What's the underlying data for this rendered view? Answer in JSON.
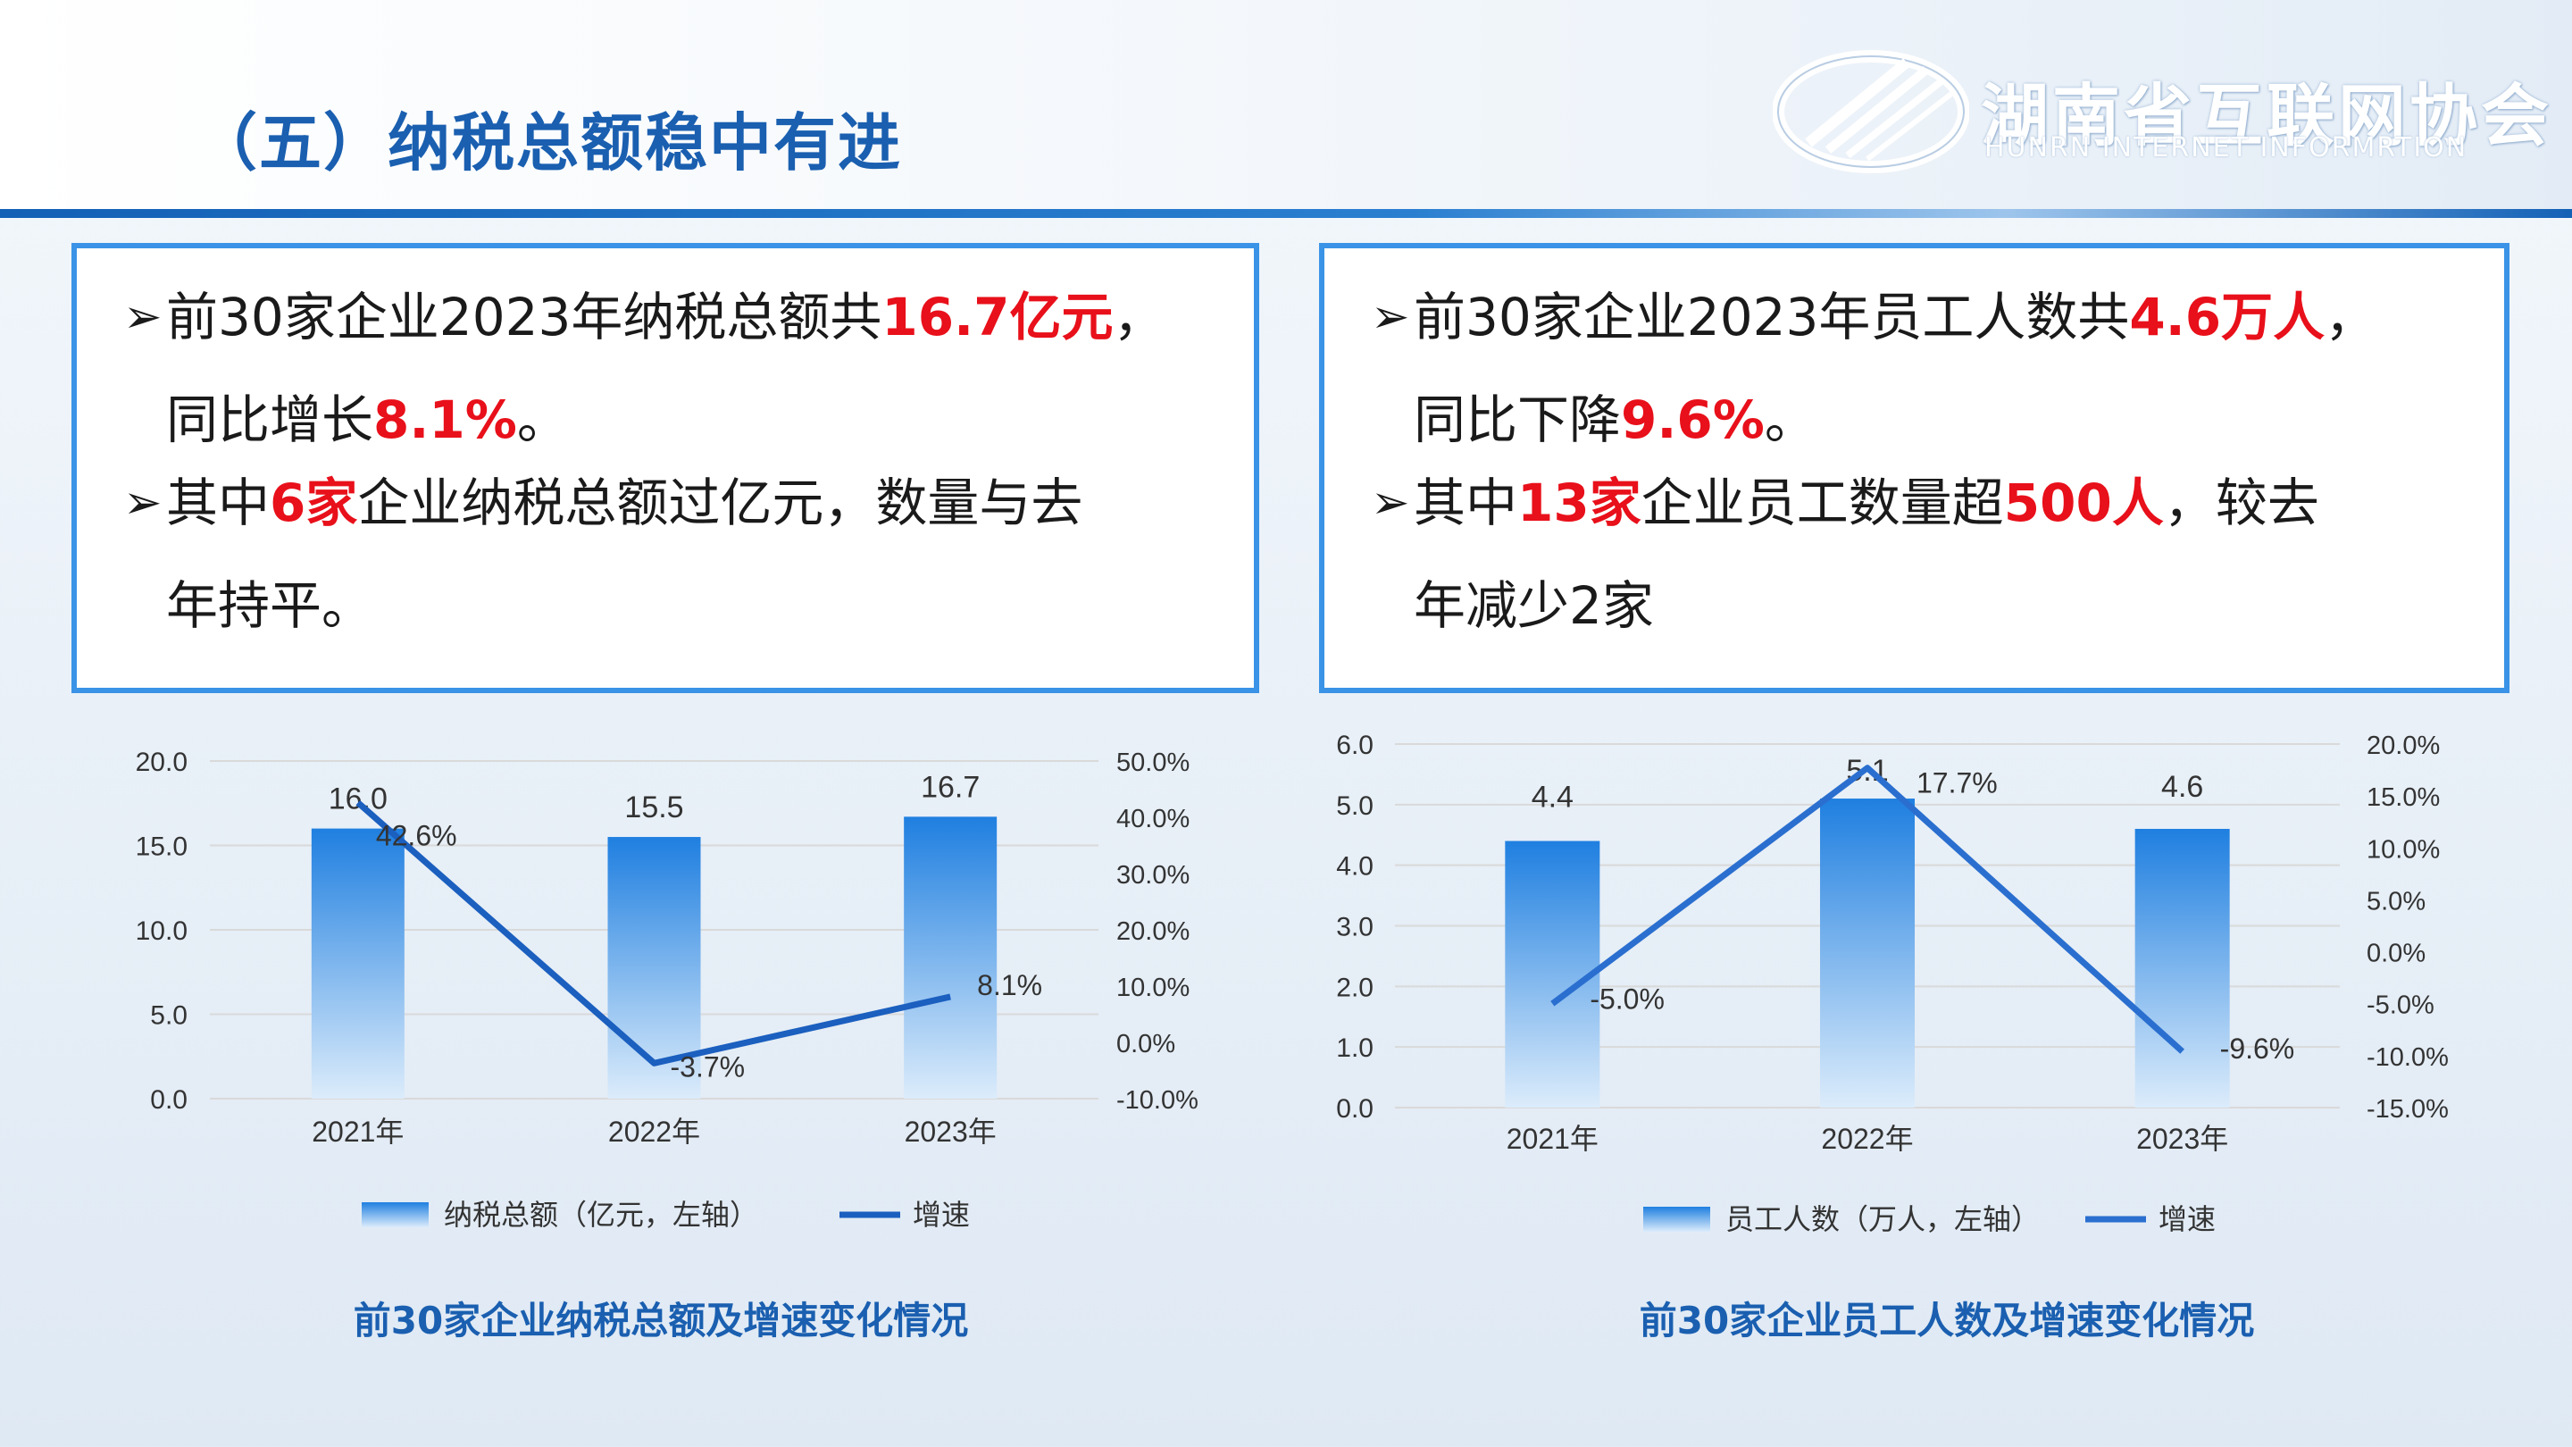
{
  "page": {
    "title": "（五）纳税总额稳中有进",
    "logo": {
      "name": "湖南省互联网协会",
      "subtitle": "HUNRN INTERNET INFORMRTION"
    }
  },
  "box_left": {
    "b1": {
      "t1": "前30家企业2023年纳税总额共",
      "h1": "16.7亿元",
      "t2": "，",
      "t3": "同比增长",
      "h2": "8.1%",
      "t4": "。"
    },
    "b2": {
      "t1": "其中",
      "h1": "6家",
      "t2": "企业纳税总额过亿元，数量与去",
      "t3": "年持平。"
    }
  },
  "box_right": {
    "b1": {
      "t1": "前30家企业2023年员工人数共",
      "h1": "4.6万人",
      "t2": "，",
      "t3": "同比下降",
      "h2": "9.6%",
      "t4": "。"
    },
    "b2": {
      "t1": "其中",
      "h1": "13家",
      "t2": "企业员工数量超",
      "h2": "500人",
      "t3": "，较去",
      "t4": "年减少2家"
    }
  },
  "colors": {
    "bar_top": "#1f7fe0",
    "bar_bottom": "#dcecfb",
    "line_left": "#1b5fbf",
    "line_right": "#2a6fcf",
    "accent": "#e8101a",
    "title": "#1a5fb0"
  },
  "chart_data": [
    {
      "type": "bar",
      "caption": "前30家企业纳税总额及增速变化情况",
      "categories": [
        "2021年",
        "2022年",
        "2023年"
      ],
      "series": [
        {
          "name": "纳税总额（亿元，左轴）",
          "type": "bar",
          "axis": "left",
          "values": [
            16.0,
            15.5,
            16.7
          ],
          "labels": [
            "16.0",
            "15.5",
            "16.7"
          ]
        },
        {
          "name": "增速",
          "type": "line",
          "axis": "right",
          "values": [
            42.6,
            -3.7,
            8.1
          ],
          "labels": [
            "42.6%",
            "-3.7%",
            "8.1%"
          ]
        }
      ],
      "y_left": {
        "min": 0,
        "max": 20,
        "ticks": [
          "0.0",
          "5.0",
          "10.0",
          "15.0",
          "20.0"
        ]
      },
      "y_right": {
        "min": -10,
        "max": 50,
        "ticks": [
          "-10.0%",
          "0.0%",
          "10.0%",
          "20.0%",
          "30.0%",
          "40.0%",
          "50.0%"
        ]
      },
      "grid": true,
      "legend": "bottom"
    },
    {
      "type": "bar",
      "caption": "前30家企业员工人数及增速变化情况",
      "categories": [
        "2021年",
        "2022年",
        "2023年"
      ],
      "series": [
        {
          "name": "员工人数（万人，左轴）",
          "type": "bar",
          "axis": "left",
          "values": [
            4.4,
            5.1,
            4.6
          ],
          "labels": [
            "4.4",
            "5.1",
            "4.6"
          ]
        },
        {
          "name": "增速",
          "type": "line",
          "axis": "right",
          "values": [
            -5.0,
            17.7,
            -9.6
          ],
          "labels": [
            "-5.0%",
            "17.7%",
            "-9.6%"
          ]
        }
      ],
      "y_left": {
        "min": 0,
        "max": 6,
        "ticks": [
          "0.0",
          "1.0",
          "2.0",
          "3.0",
          "4.0",
          "5.0",
          "6.0"
        ]
      },
      "y_right": {
        "min": -15,
        "max": 20,
        "ticks": [
          "-15.0%",
          "-10.0%",
          "-5.0%",
          "0.0%",
          "5.0%",
          "10.0%",
          "15.0%",
          "20.0%"
        ]
      },
      "grid": true,
      "legend": "bottom"
    }
  ]
}
